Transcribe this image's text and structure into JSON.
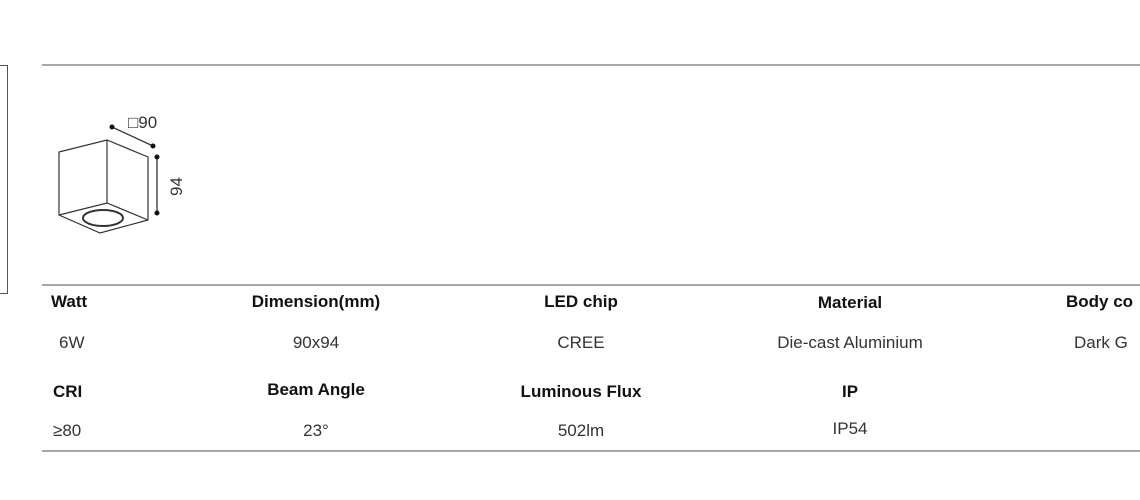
{
  "drawing": {
    "width_label": "□90",
    "height_label": "94"
  },
  "specs": {
    "row1": [
      {
        "header": "Watt",
        "value": "6W"
      },
      {
        "header": "Dimension(mm)",
        "value": "90x94"
      },
      {
        "header": "LED chip",
        "value": "CREE"
      },
      {
        "header": "Material",
        "value": "Die-cast Aluminium"
      },
      {
        "header": "Body co",
        "value": "Dark G"
      }
    ],
    "row2": [
      {
        "header": "CRI",
        "value": "≥80"
      },
      {
        "header": "Beam Angle",
        "value": "23°"
      },
      {
        "header": "Luminous Flux",
        "value": "502lm"
      },
      {
        "header": "IP",
        "value": "IP54"
      }
    ]
  }
}
